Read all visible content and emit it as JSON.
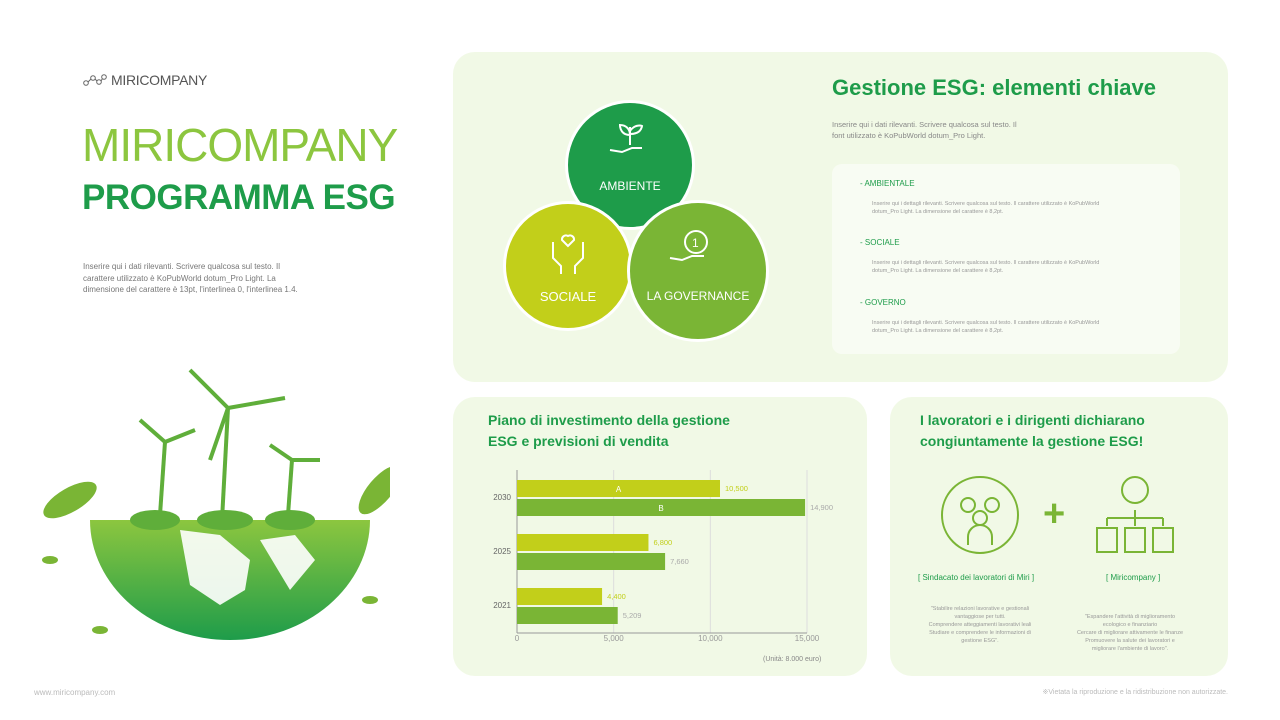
{
  "brand": "MIRICOMPANY",
  "title_line1": "MIRICOMPANY",
  "title_line2": "PROGRAMMA ESG",
  "intro": "Inserire qui i dati rilevanti. Scrivere qualcosa sul testo. Il carattere utilizzato è KoPubWorld dotum_Pro Light. La dimensione del carattere è 13pt, l'interlinea 0, l'interlinea 1.4.",
  "key": {
    "title": "Gestione ESG: elementi chiave",
    "subtitle": "Inserire qui i dati rilevanti. Scrivere qualcosa sul testo. Il font utilizzato è KoPubWorld dotum_Pro Light.",
    "circles": [
      "AMBIENTE",
      "SOCIALE",
      "LA GOVERNANCE"
    ],
    "items": [
      {
        "heading": "- AMBIENTALE",
        "text": "Inserire qui i dettagli rilevanti. Scrivere qualcosa sul testo. Il carattere utilizzato è KoPubWorld dotum_Pro Light. La dimensione del carattere è 8,2pt."
      },
      {
        "heading": "- SOCIALE",
        "text": "Inserire qui i dettagli rilevanti. Scrivere qualcosa sul testo. Il carattere utilizzato è KoPubWorld dotum_Pro Light. La dimensione del carattere è 8,2pt."
      },
      {
        "heading": "- GOVERNO",
        "text": "Inserire qui i dettagli rilevanti. Scrivere qualcosa sul testo. Il carattere utilizzato è KoPubWorld dotum_Pro Light. La dimensione del carattere è 8,2pt."
      }
    ]
  },
  "invest": {
    "title1": "Piano di investimento della gestione",
    "title2": "ESG e previsioni di vendita",
    "unit": "(Unità: 8.000 euro)"
  },
  "chart_data": {
    "type": "bar",
    "orientation": "horizontal",
    "categories": [
      "2030",
      "2025",
      "2021"
    ],
    "series": [
      {
        "name": "A",
        "values": [
          10500,
          6800,
          4400
        ],
        "color": "#c2cf1a"
      },
      {
        "name": "B",
        "values": [
          14900,
          7660,
          5209
        ],
        "color": "#7ab535"
      }
    ],
    "xlim": [
      0,
      15000
    ],
    "xticks": [
      "0",
      "5,000",
      "10,000",
      "15,000"
    ],
    "grid": true,
    "value_labels": [
      [
        "10,500",
        "6,800",
        "4,400"
      ],
      [
        "14,900",
        "7,660",
        "5,209"
      ]
    ]
  },
  "workers": {
    "title1": "I lavoratori e i dirigenti dichiarano",
    "title2": "congiuntamente la gestione ESG!",
    "plus": "+",
    "left_label": "[ Sindacato dei lavoratori di Miri ]",
    "right_label": "[ Miricompany ]",
    "left_quote": [
      "\"Stabilire relazioni lavorative e gestionali",
      "vantaggiose per tutti.",
      "Comprendere atteggiamenti lavorativi leali",
      "Studiare e comprendere le informazioni di",
      "gestione ESG\"."
    ],
    "right_quote": [
      "\"Espandere l'attività di miglioramento",
      "ecologico e finanziario",
      "Cercare di migliorare attivamente le finanze",
      "Promuovere la salute dei lavoratori e",
      "migliorare l'ambiente di lavoro\"."
    ]
  },
  "footer": {
    "url": "www.miricompany.com",
    "notice": "※Vietata la riproduzione e la ridistribuzione non autorizzate."
  },
  "colors": {
    "dark_green": "#1e9c4a",
    "mid_green": "#7ab535",
    "lime": "#c2cf1a",
    "panel": "#f1f9e6"
  }
}
